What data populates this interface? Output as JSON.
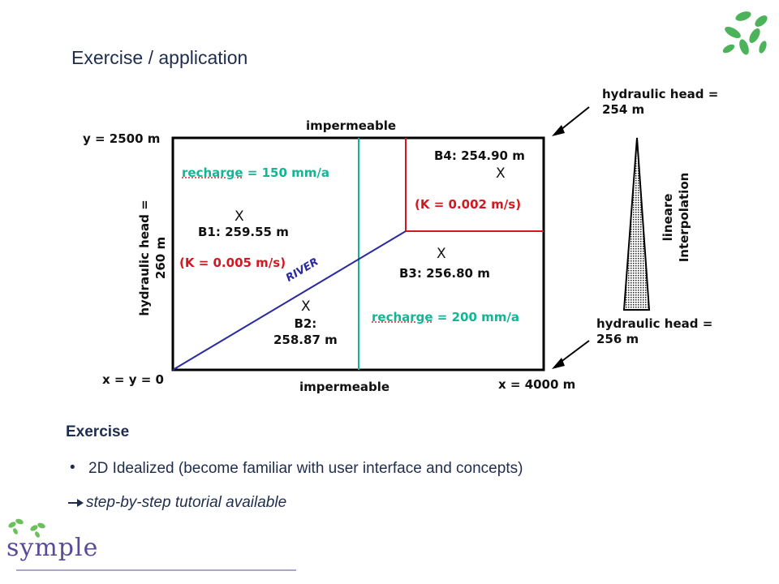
{
  "slide": {
    "title": "Exercise / application"
  },
  "diagram": {
    "labels": {
      "top_boundary": "impermeable",
      "bottom_boundary": "impermeable",
      "y_max": "y = 2500 m",
      "origin": "x = y = 0",
      "x_max": "x = 4000 m",
      "left_head_line1": "hydraulic head =",
      "left_head_line2": "260 m",
      "recharge_left": "recharge",
      "recharge_left_value": " = 150 mm/a",
      "recharge_right": "recharge",
      "recharge_right_value": " = 200 mm/a",
      "k_left": "(K = 0.005 m/s)",
      "k_right": "(K = 0.002 m/s)",
      "river": "RIVER",
      "marker": "X"
    },
    "wells": {
      "b1": "B1: 259.55 m",
      "b2_line1": "B2:",
      "b2_line2": "258.87 m",
      "b3": "B3: 256.80 m",
      "b4": "B4: 254.90 m"
    },
    "interpolation": {
      "top_head_line1": "hydraulic head =",
      "top_head_line2": "254 m",
      "bottom_head_line1": "hydraulic head =",
      "bottom_head_line2": "256 m",
      "label_line1": "lineare",
      "label_line2": "Interpolation"
    },
    "colors": {
      "recharge": "#13b594",
      "conductivity": "#d4181f",
      "river": "#2a2aa0",
      "zone_divider": "#13b594",
      "zone_boundary": "#d4181f"
    }
  },
  "exercise": {
    "heading": "Exercise",
    "bullet": "2D Idealized (become familiar with user interface and concepts)",
    "note": "step-by-step tutorial available",
    "note_icon": "arrow-right-icon"
  },
  "branding": {
    "logo_text": "symple",
    "leaf_icon": "leaves-icon"
  }
}
